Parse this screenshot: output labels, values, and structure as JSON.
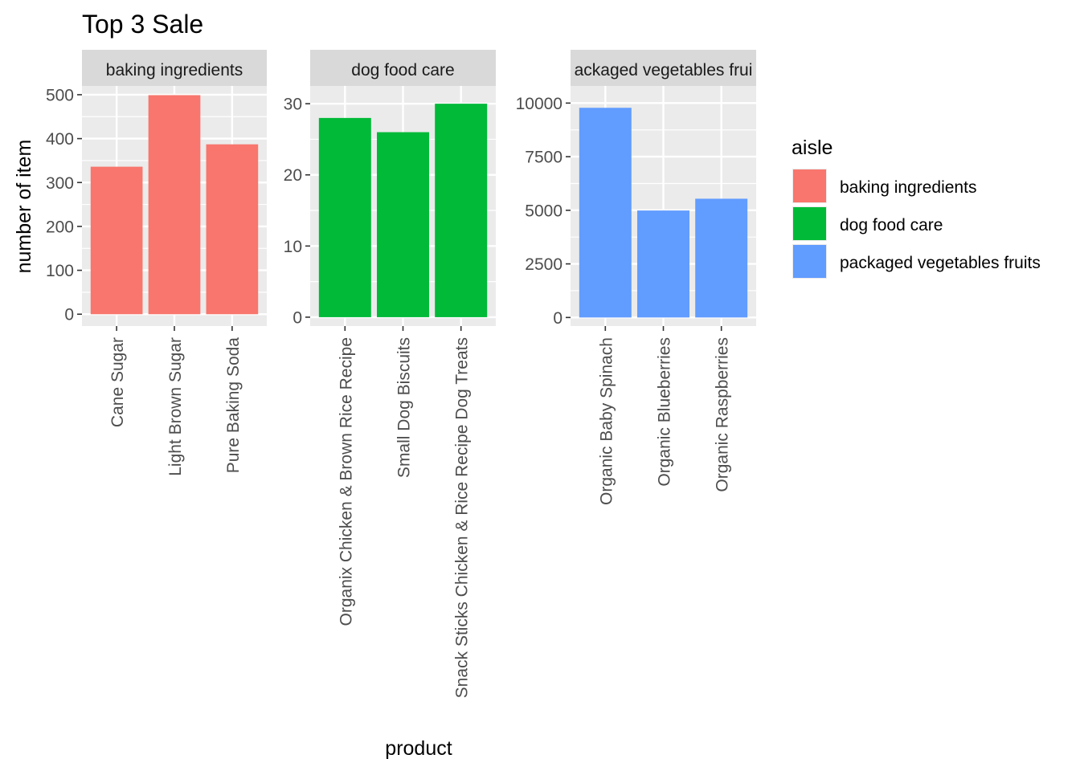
{
  "colors": {
    "panel_bg": "#EBEBEB",
    "grid": "#FFFFFF",
    "strip_bg": "#D9D9D9",
    "tick_text": "#4D4D4D",
    "title_text": "#000000",
    "axis_tick": "#333333"
  },
  "chart_data": {
    "type": "bar",
    "title": "Top 3 Sale",
    "xlabel": "product",
    "ylabel": "number of item",
    "legend": {
      "title": "aisle",
      "position": "right",
      "entries": [
        {
          "label": "baking ingredients",
          "color": "#F8766D"
        },
        {
          "label": "dog food care",
          "color": "#00BA38"
        },
        {
          "label": "packaged vegetables fruits",
          "color": "#619CFF"
        }
      ]
    },
    "facets": [
      {
        "strip": "baking ingredients",
        "strip_visible": "baking ingredients",
        "color": "#F8766D",
        "categories": [
          "Cane Sugar",
          "Light Brown Sugar",
          "Pure Baking Soda"
        ],
        "values": [
          336,
          499,
          387
        ],
        "ylim": [
          -27,
          520
        ],
        "yticks": [
          0,
          100,
          200,
          300,
          400,
          500
        ],
        "ytick_labels": [
          "0",
          "100",
          "200",
          "300",
          "400",
          "500"
        ],
        "ygrid_minor": [
          50,
          150,
          250,
          350,
          450
        ]
      },
      {
        "strip": "dog food care",
        "strip_visible": "dog food care",
        "color": "#00BA38",
        "categories": [
          "Organix Chicken & Brown Rice Recipe",
          "Small Dog Biscuits",
          "Snack Sticks Chicken & Rice Recipe Dog Treats"
        ],
        "values": [
          28,
          26,
          30
        ],
        "ylim": [
          -1.25,
          32.5
        ],
        "yticks": [
          0,
          10,
          20,
          30
        ],
        "ytick_labels": [
          "0",
          "10",
          "20",
          "30"
        ],
        "ygrid_minor": [
          5,
          15,
          25
        ]
      },
      {
        "strip": "packaged vegetables fruits",
        "strip_visible": "ackaged vegetables frui",
        "color": "#619CFF",
        "categories": [
          "Organic Baby Spinach",
          "Organic Blueberries",
          "Organic Raspberries"
        ],
        "values": [
          9780,
          4990,
          5540
        ],
        "ylim": [
          -400,
          10800
        ],
        "yticks": [
          0,
          2500,
          5000,
          7500,
          10000
        ],
        "ytick_labels": [
          "0",
          "2500",
          "5000",
          "7500",
          "10000"
        ],
        "ygrid_minor": [
          1250,
          3750,
          6250,
          8750
        ]
      }
    ]
  }
}
